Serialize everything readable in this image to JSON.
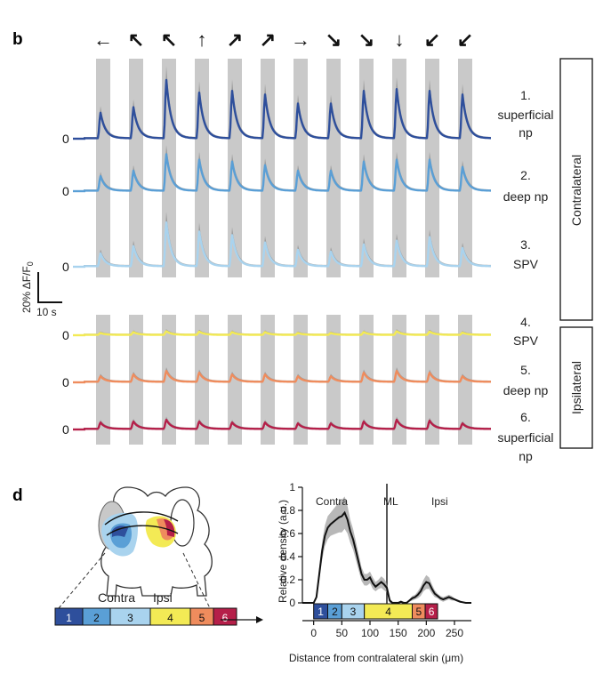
{
  "colors": {
    "superficial": "#2e4f9c",
    "deep": "#5a9fd6",
    "spv_contra": "#a9d3ee",
    "spv_ipsi": "#f3ea55",
    "deep_ipsi": "#ef8c5d",
    "superficial_ipsi": "#b51f49",
    "stim": "#c9c9c9",
    "sem": "#8c8c8c"
  },
  "panel_b": {
    "letter": "b",
    "directions": [
      "left",
      "up-left",
      "up-left",
      "up",
      "up-right",
      "up-right",
      "right",
      "down-right",
      "down-right",
      "down",
      "down-left",
      "down-left"
    ],
    "arrow_glyphs": [
      "←",
      "↖",
      "↖",
      "↑",
      "↗",
      "↗",
      "→",
      "↘",
      "↘",
      "↓",
      "↙",
      "↙"
    ],
    "groups": [
      {
        "name": "Contralateral",
        "traces": [
          {
            "number": "1.",
            "name_lines": [
              "superficial",
              "np"
            ],
            "zero": "0",
            "color_key": "superficial",
            "base": 0.25,
            "peaks": [
              14,
              17,
              32,
              25,
              26,
              24,
              19,
              19,
              26,
              27,
              26,
              24
            ]
          },
          {
            "number": "2.",
            "name_lines": [
              "deep np"
            ],
            "zero": "0",
            "color_key": "deep",
            "base": 0.25,
            "peaks": [
              8,
              11,
              20,
              17,
              16,
              14,
              11,
              11,
              16,
              17,
              17,
              13
            ]
          },
          {
            "number": "3.",
            "name_lines": [
              "SPV"
            ],
            "zero": "0",
            "color_key": "spv_contra",
            "base": 0.3,
            "peaks": [
              7,
              11,
              24,
              19,
              17,
              13,
              9,
              8,
              12,
              14,
              16,
              10
            ]
          }
        ]
      },
      {
        "name": "Ipsilateral",
        "traces": [
          {
            "number": "4.",
            "name_lines": [
              "SPV"
            ],
            "zero": "0",
            "color_key": "spv_ipsi",
            "base": 0.2,
            "peaks": [
              1,
              1.5,
              2,
              1.8,
              1.5,
              1.5,
              1,
              1,
              1.5,
              2,
              1.8,
              1.2
            ]
          },
          {
            "number": "5.",
            "name_lines": [
              "deep np"
            ],
            "zero": "0",
            "color_key": "deep_ipsi",
            "base": 0.3,
            "peaks": [
              3,
              4,
              6,
              5,
              4,
              4,
              3,
              3,
              5,
              6,
              5,
              3
            ]
          },
          {
            "number": "6.",
            "name_lines": [
              "superficial",
              "np"
            ],
            "zero": "0",
            "color_key": "superficial_ipsi",
            "base": 0.3,
            "peaks": [
              3.5,
              4,
              5,
              4,
              3.5,
              3.5,
              3,
              3,
              4,
              5,
              4.5,
              3
            ]
          }
        ]
      }
    ],
    "scale_bar": {
      "y_label": "20% ΔF/F",
      "y_sub": "0",
      "y_value_percent": 20,
      "x_label": "10 s",
      "x_value_s": 10
    }
  },
  "panel_d": {
    "letter": "d",
    "diagram": {
      "label_left": "Contra",
      "label_right": "Ipsi",
      "bar_numbers": [
        "1",
        "2",
        "3",
        "4",
        "5",
        "6"
      ]
    },
    "chart_data": {
      "type": "line",
      "title": "",
      "xlabel": "Distance from contralateral skin (μm)",
      "ylabel": "Relative density (a.u.)",
      "xlim": [
        -20,
        280
      ],
      "ylim": [
        0,
        1
      ],
      "xticks": [
        "0",
        "50",
        "100",
        "150",
        "200",
        "250"
      ],
      "yticks": [
        "0",
        "0.2",
        "0.4",
        "0.6",
        "0.8",
        "1"
      ],
      "annotations": {
        "contra": "Contra",
        "midline": "ML",
        "ipsi": "Ipsi",
        "midline_x": 130
      },
      "x": [
        -20,
        -10,
        0,
        5,
        10,
        15,
        20,
        25,
        30,
        35,
        40,
        45,
        50,
        55,
        60,
        65,
        70,
        75,
        80,
        85,
        90,
        95,
        100,
        105,
        110,
        115,
        120,
        125,
        130,
        135,
        140,
        145,
        150,
        155,
        160,
        165,
        170,
        175,
        180,
        185,
        190,
        195,
        200,
        205,
        210,
        215,
        220,
        225,
        230,
        235,
        240,
        245,
        250,
        255,
        260,
        270,
        280
      ],
      "series": [
        {
          "name": "mean",
          "values": [
            0,
            0,
            0,
            0.05,
            0.25,
            0.45,
            0.58,
            0.65,
            0.68,
            0.7,
            0.72,
            0.74,
            0.75,
            0.78,
            0.72,
            0.62,
            0.55,
            0.45,
            0.35,
            0.25,
            0.2,
            0.2,
            0.22,
            0.17,
            0.14,
            0.16,
            0.18,
            0.16,
            0.13,
            0.02,
            0.0,
            0.0,
            0.0,
            0.01,
            0.0,
            0.0,
            0.02,
            0.04,
            0.05,
            0.07,
            0.1,
            0.15,
            0.18,
            0.17,
            0.12,
            0.08,
            0.06,
            0.04,
            0.03,
            0.04,
            0.05,
            0.04,
            0.03,
            0.02,
            0.01,
            0.0,
            0.0
          ]
        },
        {
          "name": "sem",
          "values": [
            0,
            0,
            0,
            0.02,
            0.06,
            0.08,
            0.09,
            0.1,
            0.1,
            0.11,
            0.12,
            0.13,
            0.14,
            0.14,
            0.12,
            0.1,
            0.09,
            0.08,
            0.07,
            0.06,
            0.05,
            0.05,
            0.05,
            0.05,
            0.04,
            0.04,
            0.05,
            0.05,
            0.04,
            0.02,
            0.01,
            0.01,
            0.01,
            0.01,
            0.01,
            0.01,
            0.01,
            0.02,
            0.02,
            0.03,
            0.04,
            0.05,
            0.06,
            0.05,
            0.04,
            0.03,
            0.02,
            0.02,
            0.02,
            0.02,
            0.02,
            0.02,
            0.01,
            0.01,
            0.01,
            0.0,
            0.0
          ]
        }
      ],
      "colorbar_numbers": [
        "1",
        "2",
        "3",
        "4",
        "5",
        "6"
      ]
    }
  }
}
